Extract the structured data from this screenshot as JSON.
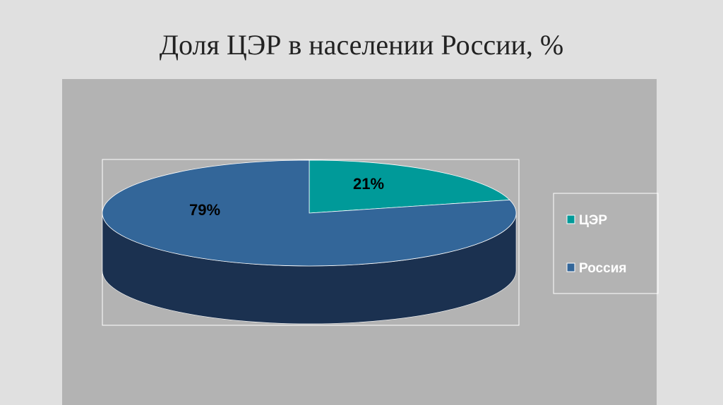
{
  "title": "Доля ЦЭР в населении России, %",
  "chart_data": {
    "type": "pie",
    "style": "3d",
    "title": "Доля ЦЭР в населении России, %",
    "categories": [
      "ЦЭР",
      "Россия"
    ],
    "values": [
      21,
      79
    ],
    "data_labels": [
      "21%",
      "79%"
    ],
    "legend_position": "right",
    "colors": {
      "ЦЭР": "#009a99",
      "Россия": "#336699",
      "side": "#1b3150"
    }
  }
}
